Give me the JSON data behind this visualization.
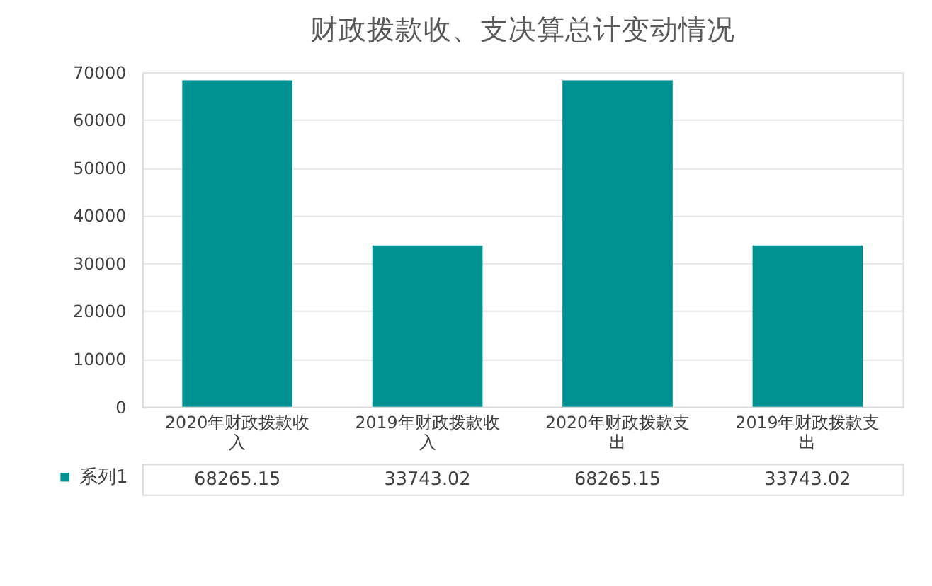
{
  "chart_data": {
    "type": "bar",
    "title": "财政拨款收、支决算总计变动情况",
    "categories": [
      "2020年财政拨款收入",
      "2019年财政拨款收入",
      "2020年财政拨款支出",
      "2019年财政拨款支出"
    ],
    "series": [
      {
        "name": "系列1",
        "color": "#009193",
        "values": [
          68265.15,
          33743.02,
          68265.15,
          33743.02
        ]
      }
    ],
    "ylim": [
      0,
      70000
    ],
    "yticks": [
      0,
      10000,
      20000,
      30000,
      40000,
      50000,
      60000,
      70000
    ],
    "grid": "y",
    "data_labels": true,
    "legend": "bottom left"
  }
}
